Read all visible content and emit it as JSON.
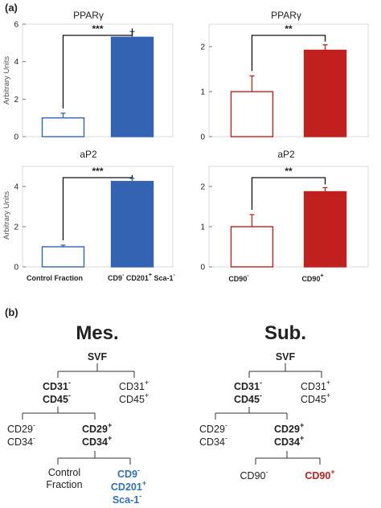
{
  "panel_a_label": "(a)",
  "panel_b_label": "(b)",
  "y_axis_label": "Arbitrary Units",
  "colors": {
    "blue": "#3563b3",
    "red": "#c0211e",
    "frame": "#d9d9d9"
  },
  "chart_data": [
    {
      "type": "bar",
      "title": "PPARγ",
      "categories": [
        "Control Fraction",
        "CD9- CD201+ Sca-1-"
      ],
      "values": [
        1.0,
        5.3
      ],
      "errors": [
        0.25,
        0.3
      ],
      "ylim": [
        0,
        6
      ],
      "yticks": [
        0,
        2,
        4,
        6
      ],
      "significance": "***",
      "color": "blue"
    },
    {
      "type": "bar",
      "title": "PPARγ",
      "categories": [
        "CD90-",
        "CD90+"
      ],
      "values": [
        1.0,
        1.92
      ],
      "errors": [
        0.35,
        0.12
      ],
      "ylim": [
        0,
        2.5
      ],
      "yticks": [
        0,
        1,
        2
      ],
      "significance": "**",
      "color": "red"
    },
    {
      "type": "bar",
      "title": "aP2",
      "categories": [
        "Control Fraction",
        "CD9- CD201+ Sca-1-"
      ],
      "values": [
        1.0,
        4.25
      ],
      "errors": [
        0.08,
        0.15
      ],
      "ylim": [
        0,
        5
      ],
      "yticks": [
        0,
        2,
        4
      ],
      "significance": "***",
      "color": "blue"
    },
    {
      "type": "bar",
      "title": "aP2",
      "categories": [
        "CD90-",
        "CD90+"
      ],
      "values": [
        1.0,
        1.87
      ],
      "errors": [
        0.3,
        0.1
      ],
      "ylim": [
        0,
        2.5
      ],
      "yticks": [
        0,
        1,
        2
      ],
      "significance": "**",
      "color": "red"
    }
  ],
  "x_categories_left": {
    "control": "Control Fraction",
    "cd9": "CD9",
    "cd201": "CD201",
    "sca": "Sca-1"
  },
  "x_categories_right": {
    "cd90": "CD90"
  },
  "trees": {
    "mes": {
      "title": "Mes.",
      "root": "SVF",
      "cd31": "CD31",
      "cd45": "CD45",
      "cd29": "CD29",
      "cd34": "CD34",
      "control1": "Control",
      "control2": "Fraction",
      "cd9": "CD9",
      "cd201": "CD201",
      "sca": "Sca-1"
    },
    "sub": {
      "title": "Sub.",
      "root": "SVF",
      "cd31": "CD31",
      "cd45": "CD45",
      "cd29": "CD29",
      "cd34": "CD34",
      "cd90": "CD90"
    }
  }
}
